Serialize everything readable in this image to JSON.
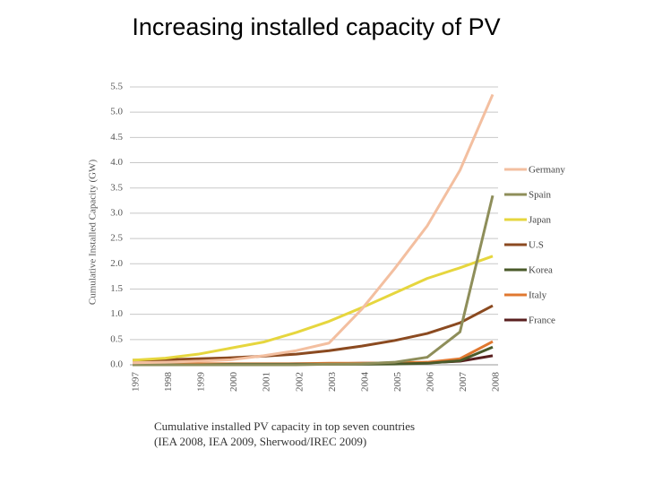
{
  "chart_data": {
    "type": "line",
    "title": "Increasing installed capacity of PV",
    "y_label": "Cumulative Installed Capacity (GW)",
    "caption": [
      "Cumulative installed PV capacity in top seven countries",
      "(IEA 2008, IEA 2009, Sherwood/IREC 2009)"
    ],
    "categories": [
      "1997",
      "1998",
      "1999",
      "2000",
      "2001",
      "2002",
      "2003",
      "2004",
      "2005",
      "2006",
      "2007",
      "2008"
    ],
    "ylim": [
      0,
      5.5
    ],
    "yticks": [
      {
        "value": 0,
        "label": "0.0"
      },
      0.5,
      {
        "value": 1,
        "label": "1.0"
      },
      1.5,
      {
        "value": 2,
        "label": "2.0"
      },
      2.5,
      {
        "value": 3,
        "label": "3.0"
      },
      3.5,
      {
        "value": 4,
        "label": "4.0"
      },
      4.5,
      {
        "value": 5,
        "label": "5.0"
      },
      5.5
    ],
    "grid": true,
    "legend": "right",
    "series": [
      {
        "name": "Germany",
        "color": "#f3bfa0",
        "values": [
          0.04,
          0.05,
          0.07,
          0.1,
          0.18,
          0.28,
          0.43,
          1.1,
          1.9,
          2.75,
          3.85,
          5.35
        ]
      },
      {
        "name": "Spain",
        "color": "#8e8e5a",
        "values": [
          0,
          0,
          0,
          0,
          0,
          0,
          0.01,
          0.02,
          0.05,
          0.15,
          0.65,
          3.35
        ]
      },
      {
        "name": "Japan",
        "color": "#e6d63e",
        "values": [
          0.09,
          0.13,
          0.21,
          0.33,
          0.45,
          0.64,
          0.86,
          1.13,
          1.42,
          1.71,
          1.92,
          2.15
        ]
      },
      {
        "name": "U.S",
        "color": "#8b4a20",
        "values": [
          0.09,
          0.1,
          0.12,
          0.14,
          0.17,
          0.21,
          0.28,
          0.37,
          0.48,
          0.62,
          0.83,
          1.17
        ]
      },
      {
        "name": "Korea",
        "color": "#4a5a2a",
        "values": [
          0,
          0,
          0,
          0.01,
          0.01,
          0.01,
          0.01,
          0.01,
          0.015,
          0.03,
          0.08,
          0.35
        ]
      },
      {
        "name": "Italy",
        "color": "#e07830",
        "values": [
          0.02,
          0.02,
          0.02,
          0.02,
          0.02,
          0.02,
          0.03,
          0.03,
          0.04,
          0.05,
          0.12,
          0.46
        ]
      },
      {
        "name": "France",
        "color": "#5a2020",
        "values": [
          0.01,
          0.01,
          0.01,
          0.01,
          0.01,
          0.02,
          0.02,
          0.03,
          0.03,
          0.04,
          0.07,
          0.18
        ]
      }
    ]
  }
}
